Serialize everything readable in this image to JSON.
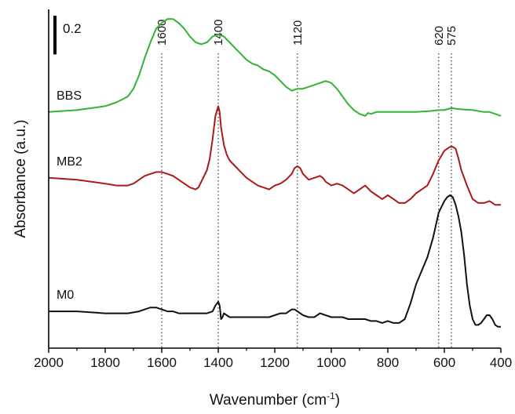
{
  "chart_data": {
    "type": "line",
    "xlabel": "Wavenumber (cm",
    "xlabel_sup": "-1",
    "xlabel_tail": ")",
    "ylabel": "Absorbance (a.u.)",
    "xlim": [
      2000,
      400
    ],
    "x_reversed": true,
    "x_ticks": [
      "2000",
      "1800",
      "1600",
      "1400",
      "1200",
      "1000",
      "800",
      "600",
      "400"
    ],
    "scale_bar_label": "0.2",
    "scale_bar_value": 0.2,
    "ylim": [
      -0.1,
      1.65
    ],
    "markers": [
      {
        "x": 1600,
        "label": "1600"
      },
      {
        "x": 1400,
        "label": "1400"
      },
      {
        "x": 1120,
        "label": "1120"
      },
      {
        "x": 620,
        "label": "620"
      },
      {
        "x": 575,
        "label": "575"
      }
    ],
    "series": [
      {
        "name": "BBS",
        "color": "#33b333",
        "x": [
          2000,
          1900,
          1800,
          1760,
          1720,
          1700,
          1680,
          1660,
          1640,
          1620,
          1600,
          1580,
          1560,
          1540,
          1520,
          1500,
          1480,
          1460,
          1440,
          1420,
          1400,
          1380,
          1360,
          1340,
          1320,
          1300,
          1280,
          1260,
          1240,
          1220,
          1200,
          1180,
          1160,
          1140,
          1120,
          1100,
          1080,
          1060,
          1040,
          1020,
          1000,
          980,
          960,
          940,
          920,
          900,
          880,
          870,
          860,
          840,
          800,
          750,
          700,
          650,
          620,
          600,
          575,
          550,
          500,
          460,
          440,
          420,
          400
        ],
        "y": [
          1.12,
          1.13,
          1.15,
          1.17,
          1.2,
          1.24,
          1.31,
          1.4,
          1.48,
          1.55,
          1.58,
          1.6,
          1.6,
          1.58,
          1.55,
          1.51,
          1.48,
          1.47,
          1.48,
          1.51,
          1.52,
          1.51,
          1.48,
          1.45,
          1.42,
          1.39,
          1.37,
          1.36,
          1.34,
          1.33,
          1.31,
          1.28,
          1.25,
          1.23,
          1.24,
          1.24,
          1.25,
          1.26,
          1.27,
          1.28,
          1.27,
          1.24,
          1.2,
          1.16,
          1.13,
          1.11,
          1.1,
          1.115,
          1.11,
          1.12,
          1.12,
          1.12,
          1.12,
          1.125,
          1.13,
          1.13,
          1.14,
          1.135,
          1.13,
          1.12,
          1.12,
          1.11,
          1.1
        ]
      },
      {
        "name": "MB2",
        "color": "#aa1a1a",
        "x": [
          2000,
          1900,
          1800,
          1760,
          1720,
          1700,
          1680,
          1660,
          1640,
          1620,
          1600,
          1580,
          1560,
          1540,
          1520,
          1500,
          1480,
          1470,
          1460,
          1450,
          1440,
          1430,
          1420,
          1410,
          1400,
          1395,
          1390,
          1380,
          1370,
          1360,
          1340,
          1320,
          1300,
          1280,
          1260,
          1240,
          1220,
          1200,
          1180,
          1160,
          1140,
          1130,
          1120,
          1110,
          1100,
          1080,
          1060,
          1040,
          1030,
          1020,
          1000,
          980,
          960,
          940,
          920,
          900,
          880,
          860,
          840,
          820,
          800,
          780,
          760,
          740,
          720,
          700,
          680,
          660,
          640,
          620,
          600,
          580,
          570,
          560,
          550,
          540,
          520,
          500,
          480,
          460,
          440,
          420,
          400
        ],
        "y": [
          0.78,
          0.77,
          0.75,
          0.74,
          0.74,
          0.75,
          0.77,
          0.79,
          0.8,
          0.81,
          0.81,
          0.8,
          0.79,
          0.77,
          0.75,
          0.73,
          0.72,
          0.73,
          0.76,
          0.79,
          0.82,
          0.88,
          0.98,
          1.1,
          1.15,
          1.12,
          1.04,
          0.95,
          0.9,
          0.87,
          0.84,
          0.81,
          0.78,
          0.76,
          0.74,
          0.73,
          0.72,
          0.74,
          0.75,
          0.77,
          0.8,
          0.83,
          0.84,
          0.83,
          0.8,
          0.77,
          0.78,
          0.79,
          0.78,
          0.76,
          0.74,
          0.75,
          0.74,
          0.72,
          0.7,
          0.72,
          0.74,
          0.71,
          0.69,
          0.67,
          0.69,
          0.67,
          0.65,
          0.65,
          0.67,
          0.7,
          0.72,
          0.74,
          0.8,
          0.87,
          0.92,
          0.94,
          0.94,
          0.93,
          0.88,
          0.82,
          0.74,
          0.67,
          0.65,
          0.65,
          0.66,
          0.64,
          0.64
        ]
      },
      {
        "name": "M0",
        "color": "#111111",
        "x": [
          2000,
          1900,
          1800,
          1720,
          1680,
          1660,
          1640,
          1620,
          1600,
          1580,
          1560,
          1540,
          1520,
          1500,
          1480,
          1460,
          1440,
          1420,
          1410,
          1400,
          1395,
          1390,
          1385,
          1380,
          1370,
          1360,
          1340,
          1320,
          1300,
          1280,
          1260,
          1240,
          1220,
          1200,
          1180,
          1160,
          1140,
          1130,
          1120,
          1100,
          1080,
          1060,
          1040,
          1020,
          1000,
          980,
          960,
          940,
          920,
          900,
          880,
          860,
          840,
          820,
          800,
          780,
          760,
          740,
          720,
          700,
          680,
          660,
          640,
          620,
          600,
          590,
          580,
          570,
          560,
          550,
          540,
          530,
          520,
          510,
          500,
          490,
          480,
          470,
          460,
          450,
          440,
          430,
          420,
          410,
          400
        ],
        "y": [
          0.09,
          0.09,
          0.08,
          0.08,
          0.09,
          0.1,
          0.11,
          0.11,
          0.1,
          0.09,
          0.09,
          0.08,
          0.08,
          0.08,
          0.08,
          0.08,
          0.08,
          0.09,
          0.12,
          0.14,
          0.12,
          0.05,
          0.06,
          0.08,
          0.07,
          0.06,
          0.06,
          0.06,
          0.06,
          0.06,
          0.06,
          0.06,
          0.06,
          0.07,
          0.08,
          0.08,
          0.1,
          0.1,
          0.09,
          0.07,
          0.06,
          0.06,
          0.08,
          0.07,
          0.06,
          0.06,
          0.06,
          0.05,
          0.05,
          0.05,
          0.05,
          0.04,
          0.04,
          0.03,
          0.04,
          0.03,
          0.03,
          0.05,
          0.13,
          0.23,
          0.3,
          0.37,
          0.47,
          0.6,
          0.66,
          0.68,
          0.69,
          0.68,
          0.64,
          0.58,
          0.5,
          0.38,
          0.23,
          0.12,
          0.05,
          0.02,
          0.02,
          0.03,
          0.05,
          0.07,
          0.07,
          0.05,
          0.02,
          0.01,
          0.01
        ]
      }
    ]
  }
}
